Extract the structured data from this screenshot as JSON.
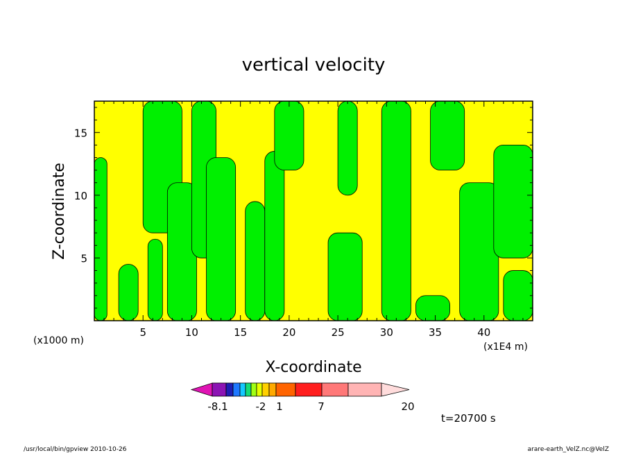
{
  "chart_data": {
    "type": "heatmap",
    "title": "vertical velocity",
    "xlabel": "X-coordinate",
    "ylabel": "Z-coordinate",
    "x_unit_label": "(x1E4 m)",
    "y_unit_label": "(x1000 m)",
    "xlim": [
      0,
      45
    ],
    "ylim": [
      0,
      17.5
    ],
    "x_ticks": [
      "5",
      "10",
      "15",
      "20",
      "25",
      "30",
      "35",
      "40"
    ],
    "x_tick_values": [
      5,
      10,
      15,
      20,
      25,
      30,
      35,
      40
    ],
    "y_ticks": [
      "5",
      "10",
      "15"
    ],
    "y_tick_values": [
      5,
      10,
      15
    ],
    "time_label": "t=20700 s",
    "colorbar": {
      "labels": [
        "-8.1",
        "-2",
        "1",
        "7",
        "20"
      ],
      "colors": [
        "#e014b4",
        "#8c14b4",
        "#1e1eb4",
        "#1e78ff",
        "#14c8ff",
        "#14dc78",
        "#a0ff14",
        "#e6ff00",
        "#ffd000",
        "#ffaa00",
        "#ff6400",
        "#ff1e1e",
        "#ff7878",
        "#ffb4b4",
        "#ffdcdc"
      ]
    },
    "field_colors": {
      "negative": "#ffff00",
      "positive": "#00f000",
      "contour": "#000000"
    },
    "bands": [
      {
        "x0": 0.0,
        "x1": 1.3,
        "y0": 0,
        "y1": 13,
        "class": "positive"
      },
      {
        "x0": 2.5,
        "x1": 4.5,
        "y0": 0,
        "y1": 4.5,
        "class": "positive"
      },
      {
        "x0": 5.5,
        "x1": 7.0,
        "y0": 0,
        "y1": 6.5,
        "class": "positive"
      },
      {
        "x0": 5.0,
        "x1": 9.0,
        "y0": 7,
        "y1": 17.5,
        "class": "positive"
      },
      {
        "x0": 7.5,
        "x1": 10.5,
        "y0": 0,
        "y1": 11,
        "class": "positive"
      },
      {
        "x0": 10.0,
        "x1": 12.5,
        "y0": 5,
        "y1": 17.5,
        "class": "positive"
      },
      {
        "x0": 11.5,
        "x1": 14.5,
        "y0": 0,
        "y1": 13,
        "class": "positive"
      },
      {
        "x0": 15.5,
        "x1": 17.5,
        "y0": 0,
        "y1": 9.5,
        "class": "positive"
      },
      {
        "x0": 17.5,
        "x1": 19.5,
        "y0": 0,
        "y1": 13.5,
        "class": "positive"
      },
      {
        "x0": 18.5,
        "x1": 21.5,
        "y0": 12,
        "y1": 17.5,
        "class": "positive"
      },
      {
        "x0": 24.0,
        "x1": 27.5,
        "y0": 0,
        "y1": 7,
        "class": "positive"
      },
      {
        "x0": 25.0,
        "x1": 27.0,
        "y0": 10,
        "y1": 17.5,
        "class": "positive"
      },
      {
        "x0": 29.5,
        "x1": 32.5,
        "y0": 0,
        "y1": 17.5,
        "class": "positive"
      },
      {
        "x0": 33.0,
        "x1": 36.5,
        "y0": 0,
        "y1": 2,
        "class": "positive"
      },
      {
        "x0": 34.5,
        "x1": 38.0,
        "y0": 12,
        "y1": 17.5,
        "class": "positive"
      },
      {
        "x0": 37.5,
        "x1": 41.5,
        "y0": 0,
        "y1": 11,
        "class": "positive"
      },
      {
        "x0": 41.0,
        "x1": 45.0,
        "y0": 5,
        "y1": 14,
        "class": "positive"
      },
      {
        "x0": 42.0,
        "x1": 45.0,
        "y0": 0,
        "y1": 4,
        "class": "positive"
      }
    ]
  },
  "footer": {
    "left": "/usr/local/bin/gpview  2010-10-26",
    "right": "arare-earth_VelZ.nc@VelZ"
  }
}
